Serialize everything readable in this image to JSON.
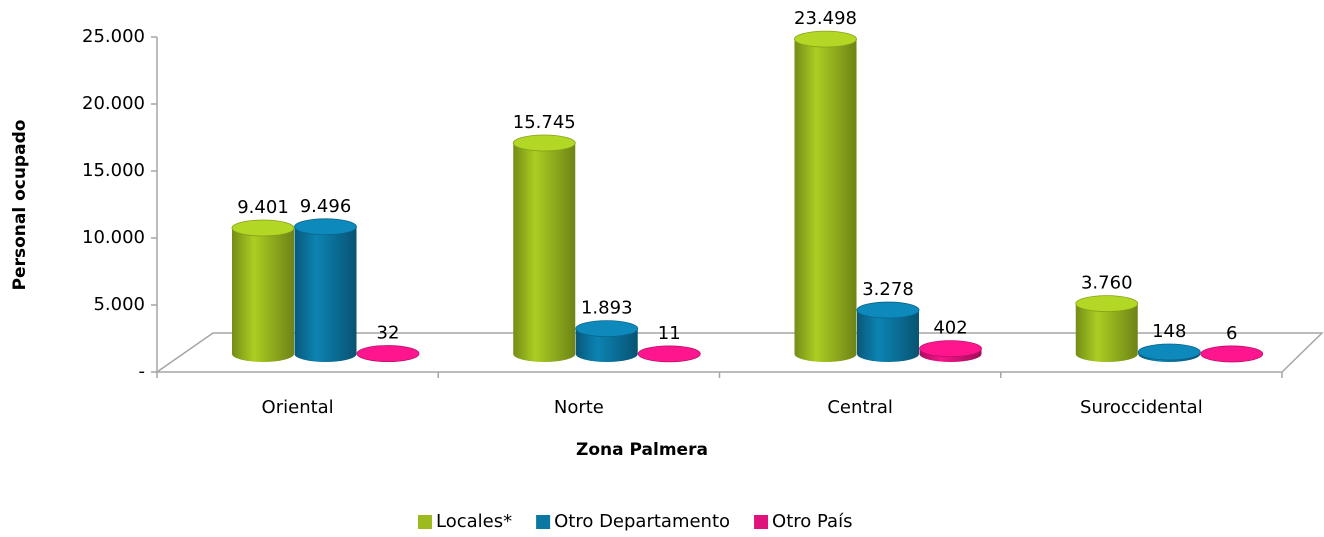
{
  "chart_data": {
    "type": "bar3d",
    "x_label": "Zona Palmera",
    "y_label": "Personal ocupado",
    "categories": [
      "Oriental",
      "Norte",
      "Central",
      "Suroccidental"
    ],
    "series": [
      {
        "name": "Locales*",
        "color": "#9bbb1f",
        "values": [
          9401,
          15745,
          23498,
          3760
        ],
        "value_labels": [
          "9.401",
          "15.745",
          "23.498",
          "3.760"
        ]
      },
      {
        "name": "Otro Departamento",
        "color": "#0b77a3",
        "values": [
          9496,
          1893,
          3278,
          148
        ],
        "value_labels": [
          "9.496",
          "1.893",
          "3.278",
          "148"
        ]
      },
      {
        "name": "Otro País",
        "color": "#e0137c",
        "values": [
          32,
          11,
          402,
          6
        ],
        "value_labels": [
          "32",
          "11",
          "402",
          "6"
        ]
      }
    ],
    "ylim": [
      0,
      25000
    ],
    "yticks": [
      {
        "value": 0,
        "label": "-"
      },
      {
        "value": 5000,
        "label": "5.000"
      },
      {
        "value": 10000,
        "label": "10.000"
      },
      {
        "value": 15000,
        "label": "15.000"
      },
      {
        "value": 20000,
        "label": "20.000"
      },
      {
        "value": 25000,
        "label": "25.000"
      }
    ],
    "legend": "bottom"
  }
}
